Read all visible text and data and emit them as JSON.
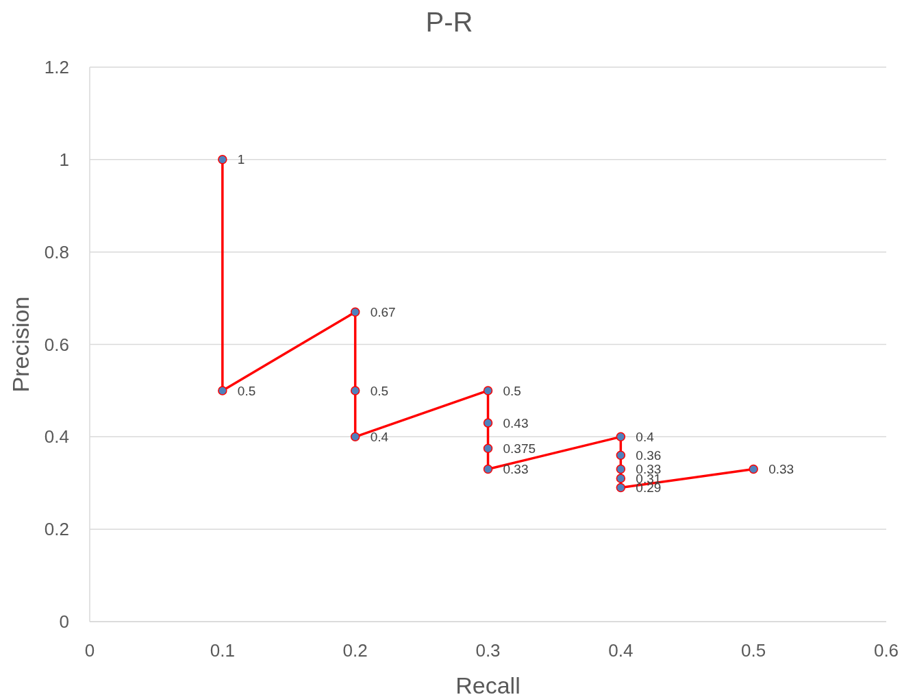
{
  "chart_data": {
    "type": "line",
    "title": "P-R",
    "xlabel": "Recall",
    "ylabel": "Precision",
    "x": [
      0.1,
      0.1,
      0.2,
      0.2,
      0.2,
      0.3,
      0.3,
      0.3,
      0.3,
      0.4,
      0.4,
      0.4,
      0.4,
      0.4,
      0.5
    ],
    "series": [
      {
        "color": "#ff0000",
        "values": [
          1,
          0.5,
          0.67,
          0.5,
          0.4,
          0.5,
          0.43,
          0.375,
          0.33,
          0.4,
          0.36,
          0.33,
          0.31,
          0.29,
          0.33
        ]
      }
    ],
    "xlim": [
      0,
      0.6
    ],
    "xticks": [
      0,
      0.1,
      0.2,
      0.3,
      0.4,
      0.5,
      0.6
    ],
    "ylim": [
      0,
      1.2
    ],
    "yticks": [
      0,
      0.2,
      0.4,
      0.6,
      0.8,
      1,
      1.2
    ],
    "grid": "y",
    "marker": "circle",
    "line_style": "solid",
    "data_labels": true
  }
}
